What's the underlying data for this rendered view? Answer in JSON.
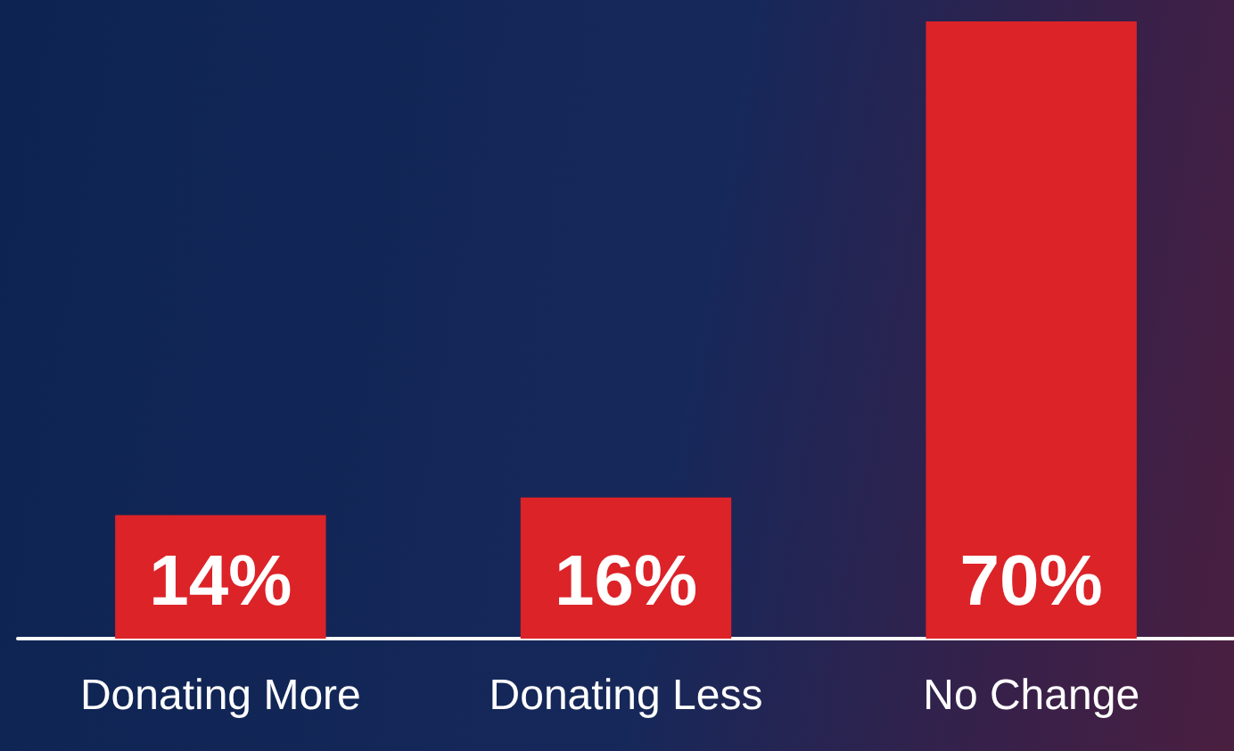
{
  "chart_data": {
    "type": "bar",
    "categories": [
      "Donating More",
      "Donating Less",
      "No Change"
    ],
    "values": [
      14,
      16,
      70
    ],
    "color": "#dc2328",
    "value_labels": [
      "14%",
      "16%",
      "70%"
    ]
  }
}
